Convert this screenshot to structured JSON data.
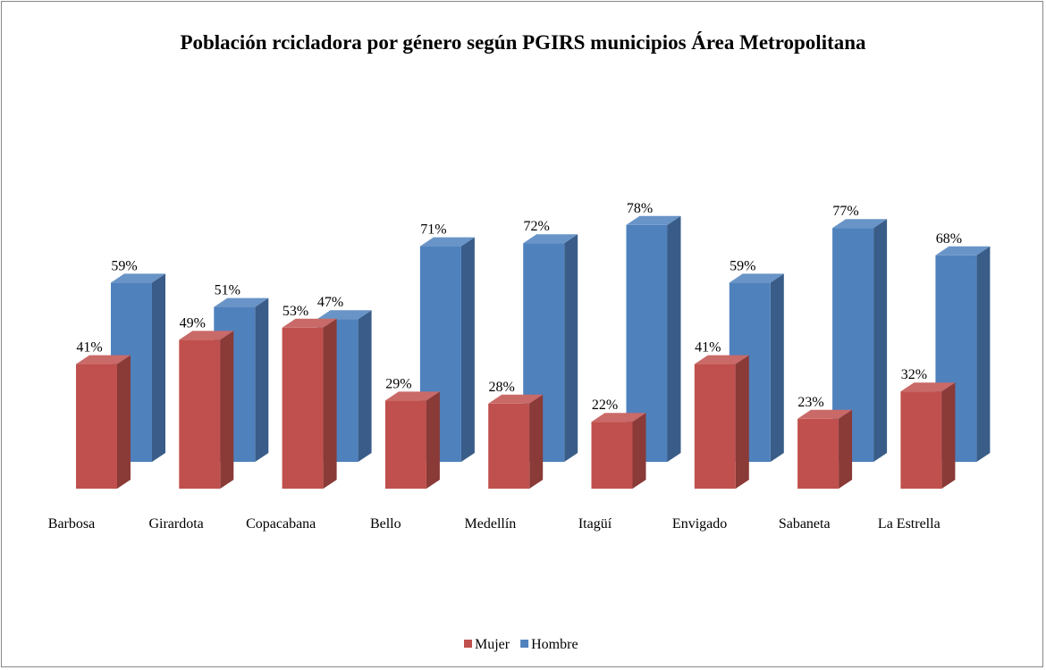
{
  "chart_data": {
    "type": "bar3d",
    "title": "Población rcicladora por género según PGIRS municipios Área Metropolitana",
    "categories": [
      "Barbosa",
      "Girardota",
      "Copacabana",
      "Bello",
      "Medellín",
      "Itagüí",
      "Envigado",
      "Sabaneta",
      "La Estrella"
    ],
    "series": [
      {
        "name": "Mujer",
        "color": "#c0504d",
        "values": [
          41,
          49,
          53,
          29,
          28,
          22,
          41,
          23,
          32
        ],
        "value_labels": [
          "41%",
          "49%",
          "53%",
          "29%",
          "28%",
          "22%",
          "41%",
          "23%",
          "32%"
        ]
      },
      {
        "name": "Hombre",
        "color": "#4f81bd",
        "values": [
          59,
          51,
          47,
          71,
          72,
          78,
          59,
          77,
          68
        ],
        "value_labels": [
          "59%",
          "51%",
          "47%",
          "71%",
          "72%",
          "78%",
          "59%",
          "77%",
          "68%"
        ]
      }
    ],
    "legend": "bottom"
  }
}
